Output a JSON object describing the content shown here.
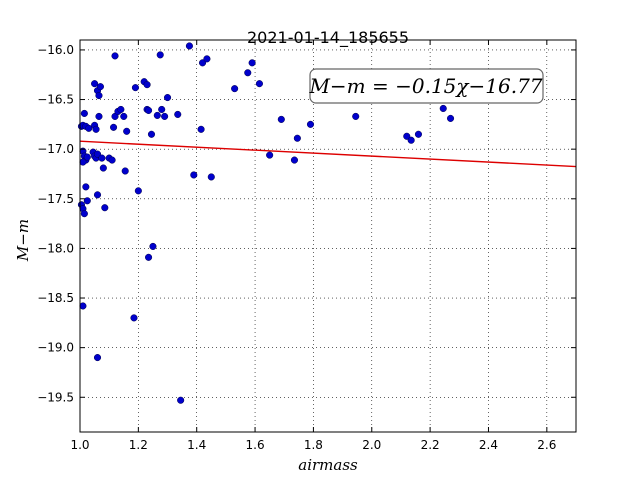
{
  "chart_data": {
    "type": "scatter",
    "title": "2021-01-14_185655",
    "xlabel": "airmass",
    "ylabel": "M−m",
    "xlim": [
      1.0,
      2.7
    ],
    "ylim": [
      -19.85,
      -15.9
    ],
    "x_ticks": [
      1.0,
      1.2,
      1.4,
      1.6,
      1.8,
      2.0,
      2.2,
      2.4,
      2.6
    ],
    "x_tick_labels": [
      "1.0",
      "1.2",
      "1.4",
      "1.6",
      "1.8",
      "2.0",
      "2.2",
      "2.4",
      "2.6"
    ],
    "y_ticks": [
      -16.0,
      -16.5,
      -17.0,
      -17.5,
      -18.0,
      -18.5,
      -19.0,
      -19.5
    ],
    "y_tick_labels": [
      "−16.0",
      "−16.5",
      "−17.0",
      "−17.5",
      "−18.0",
      "−18.5",
      "−19.0",
      "−19.5"
    ],
    "grid": true,
    "annotation": "M−m = −0.15χ−16.77",
    "point_color": "#0000cc",
    "fit_color": "#dd0000",
    "fit_line": {
      "slope": -0.15,
      "intercept": -16.77
    },
    "points": [
      [
        1.005,
        -16.77
      ],
      [
        1.01,
        -16.76
      ],
      [
        1.015,
        -16.64
      ],
      [
        1.02,
        -16.77
      ],
      [
        1.01,
        -17.02
      ],
      [
        1.015,
        -17.07
      ],
      [
        1.02,
        -17.11
      ],
      [
        1.025,
        -17.08
      ],
      [
        1.03,
        -16.79
      ],
      [
        1.01,
        -17.13
      ],
      [
        1.005,
        -17.56
      ],
      [
        1.01,
        -17.6
      ],
      [
        1.015,
        -17.65
      ],
      [
        1.02,
        -17.38
      ],
      [
        1.025,
        -17.52
      ],
      [
        1.01,
        -18.58
      ],
      [
        1.05,
        -16.34
      ],
      [
        1.06,
        -16.41
      ],
      [
        1.065,
        -16.46
      ],
      [
        1.07,
        -16.37
      ],
      [
        1.065,
        -16.67
      ],
      [
        1.05,
        -16.76
      ],
      [
        1.055,
        -16.8
      ],
      [
        1.045,
        -17.03
      ],
      [
        1.05,
        -17.07
      ],
      [
        1.055,
        -17.09
      ],
      [
        1.06,
        -17.05
      ],
      [
        1.075,
        -17.09
      ],
      [
        1.08,
        -17.19
      ],
      [
        1.06,
        -17.46
      ],
      [
        1.085,
        -17.59
      ],
      [
        1.06,
        -19.1
      ],
      [
        1.1,
        -17.09
      ],
      [
        1.11,
        -17.11
      ],
      [
        1.115,
        -16.78
      ],
      [
        1.12,
        -16.06
      ],
      [
        1.12,
        -16.67
      ],
      [
        1.13,
        -16.62
      ],
      [
        1.14,
        -16.6
      ],
      [
        1.15,
        -16.67
      ],
      [
        1.16,
        -16.82
      ],
      [
        1.155,
        -17.22
      ],
      [
        1.19,
        -16.38
      ],
      [
        1.2,
        -17.42
      ],
      [
        1.185,
        -18.7
      ],
      [
        1.22,
        -16.32
      ],
      [
        1.23,
        -16.35
      ],
      [
        1.23,
        -16.6
      ],
      [
        1.235,
        -16.61
      ],
      [
        1.245,
        -16.85
      ],
      [
        1.265,
        -16.66
      ],
      [
        1.275,
        -16.05
      ],
      [
        1.28,
        -16.6
      ],
      [
        1.29,
        -16.67
      ],
      [
        1.3,
        -16.48
      ],
      [
        1.25,
        -17.98
      ],
      [
        1.235,
        -18.09
      ],
      [
        1.335,
        -16.65
      ],
      [
        1.375,
        -15.96
      ],
      [
        1.39,
        -17.26
      ],
      [
        1.415,
        -16.8
      ],
      [
        1.42,
        -16.13
      ],
      [
        1.435,
        -16.09
      ],
      [
        1.45,
        -17.28
      ],
      [
        1.345,
        -19.53
      ],
      [
        1.53,
        -16.39
      ],
      [
        1.575,
        -16.23
      ],
      [
        1.59,
        -16.13
      ],
      [
        1.615,
        -16.34
      ],
      [
        1.65,
        -17.06
      ],
      [
        1.69,
        -16.7
      ],
      [
        1.735,
        -17.11
      ],
      [
        1.745,
        -16.89
      ],
      [
        1.79,
        -16.75
      ],
      [
        1.945,
        -16.67
      ],
      [
        2.12,
        -16.87
      ],
      [
        2.135,
        -16.91
      ],
      [
        2.16,
        -16.85
      ],
      [
        2.245,
        -16.59
      ],
      [
        2.27,
        -16.69
      ]
    ]
  }
}
